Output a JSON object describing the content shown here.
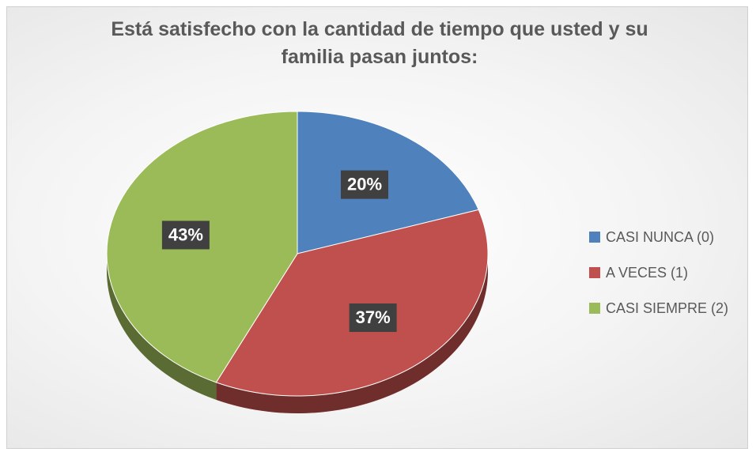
{
  "chart_data": {
    "type": "pie",
    "title": "Está satisfecho con la cantidad de tiempo que usted y su familia pasan juntos:",
    "categories": [
      "CASI NUNCA (0)",
      "A VECES (1)",
      "CASI SIEMPRE (2)"
    ],
    "values": [
      20,
      37,
      43
    ],
    "value_labels": [
      "20%",
      "37%",
      "43%"
    ],
    "colors": [
      "#4f81bd",
      "#c0504d",
      "#9bbb59"
    ],
    "legend": "right"
  }
}
